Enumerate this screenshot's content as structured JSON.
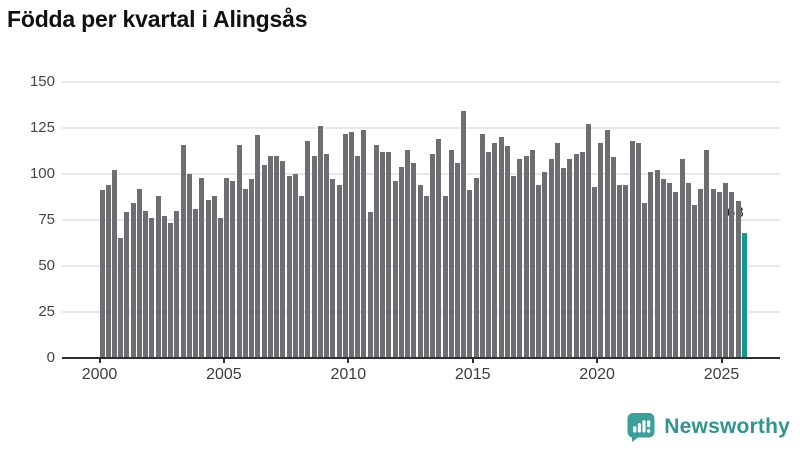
{
  "title": "Födda per kvartal i Alingsås",
  "chart_data": {
    "type": "bar",
    "title": "Födda per kvartal i Alingsås",
    "x_unit": "quarter",
    "start": "2000-Q1",
    "end": "2025-Q4",
    "values": [
      91,
      94,
      102,
      65,
      79,
      84,
      92,
      80,
      76,
      88,
      77,
      73,
      80,
      116,
      100,
      81,
      98,
      86,
      88,
      76,
      98,
      96,
      116,
      92,
      97,
      121,
      105,
      110,
      110,
      107,
      99,
      100,
      88,
      118,
      110,
      126,
      111,
      97,
      94,
      122,
      123,
      110,
      124,
      79,
      116,
      112,
      112,
      96,
      104,
      113,
      106,
      94,
      88,
      111,
      119,
      88,
      113,
      106,
      134,
      91,
      98,
      122,
      112,
      117,
      120,
      115,
      99,
      108,
      110,
      113,
      94,
      101,
      108,
      117,
      103,
      108,
      111,
      112,
      127,
      93,
      117,
      124,
      109,
      94,
      94,
      118,
      117,
      84,
      101,
      102,
      97,
      95,
      90,
      108,
      95,
      83,
      92,
      113,
      92,
      90,
      95,
      90,
      85,
      68
    ],
    "years_per_row": 4,
    "highlight_last_bar": true,
    "last_value_label": "68",
    "y_ticks": [
      0,
      25,
      50,
      75,
      100,
      125,
      150
    ],
    "x_ticks": [
      "2000",
      "2005",
      "2010",
      "2015",
      "2020",
      "2025"
    ],
    "ylim": [
      0,
      150
    ],
    "xlabel": "",
    "ylabel": "",
    "grid": "horizontal",
    "legend": false
  },
  "colors": {
    "bar": "#6e6d72",
    "bar_highlight": "#12998f",
    "grid": "#e8e8e8",
    "axis": "#2f2f2f",
    "title_text": "#111111",
    "tick_text": "#454545",
    "logo": "#339690"
  },
  "annotation": {
    "text": "68"
  },
  "branding": {
    "label": "Newsworthy",
    "icon": "newsworthy-chart-bubble-icon"
  }
}
